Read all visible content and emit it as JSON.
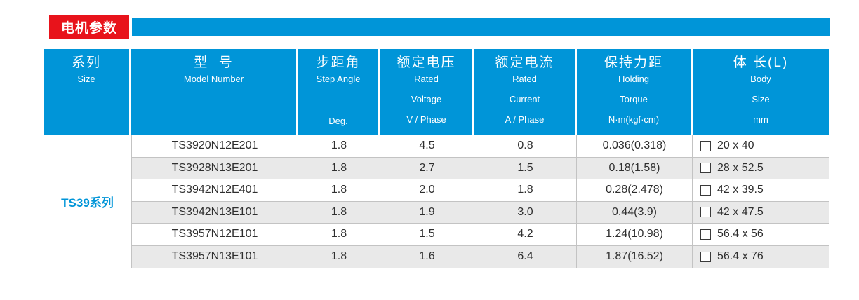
{
  "title_bar": {
    "label": "电机参数"
  },
  "colors": {
    "header_blue": "#0095d8",
    "title_red": "#e8131b",
    "row_stripe": "#e9e9e9",
    "grid_line": "#c3c3c3",
    "series_text_blue": "#0095d8",
    "header_text": "#ffffff"
  },
  "table": {
    "series_label": "TS39系列",
    "header": {
      "columns": [
        {
          "zh": "系列",
          "l1": "Size"
        },
        {
          "zh": "型  号",
          "l1": "Model Number"
        },
        {
          "zh": "步距角",
          "l1": "Step Angle",
          "l3": "Deg."
        },
        {
          "zh": "额定电压",
          "l1": "Rated",
          "l2": "Voltage",
          "l3": "V / Phase"
        },
        {
          "zh": "额定电流",
          "l1": "Rated",
          "l2": "Current",
          "l3": "A / Phase"
        },
        {
          "zh": "保持力距",
          "l1": "Holding",
          "l2": "Torque",
          "l3": "N·m(kgf·cm)"
        },
        {
          "zh": "体 长(L)",
          "l1": "Body",
          "l2": "Size",
          "l3": "mm"
        }
      ]
    },
    "rows": [
      {
        "model": "TS3920N12E201",
        "step_angle": "1.8",
        "voltage": "4.5",
        "current": "0.8",
        "torque": "0.036(0.318)",
        "body_size": "20 x 40"
      },
      {
        "model": "TS3928N13E201",
        "step_angle": "1.8",
        "voltage": "2.7",
        "current": "1.5",
        "torque": "0.18(1.58)",
        "body_size": "28 x 52.5"
      },
      {
        "model": "TS3942N12E401",
        "step_angle": "1.8",
        "voltage": "2.0",
        "current": "1.8",
        "torque": "0.28(2.478)",
        "body_size": "42 x 39.5"
      },
      {
        "model": "TS3942N13E101",
        "step_angle": "1.8",
        "voltage": "1.9",
        "current": "3.0",
        "torque": "0.44(3.9)",
        "body_size": "42 x 47.5"
      },
      {
        "model": "TS3957N12E101",
        "step_angle": "1.8",
        "voltage": "1.5",
        "current": "4.2",
        "torque": "1.24(10.98)",
        "body_size": "56.4 x 56"
      },
      {
        "model": "TS3957N13E101",
        "step_angle": "1.8",
        "voltage": "1.6",
        "current": "6.4",
        "torque": "1.87(16.52)",
        "body_size": "56.4 x 76"
      }
    ]
  }
}
